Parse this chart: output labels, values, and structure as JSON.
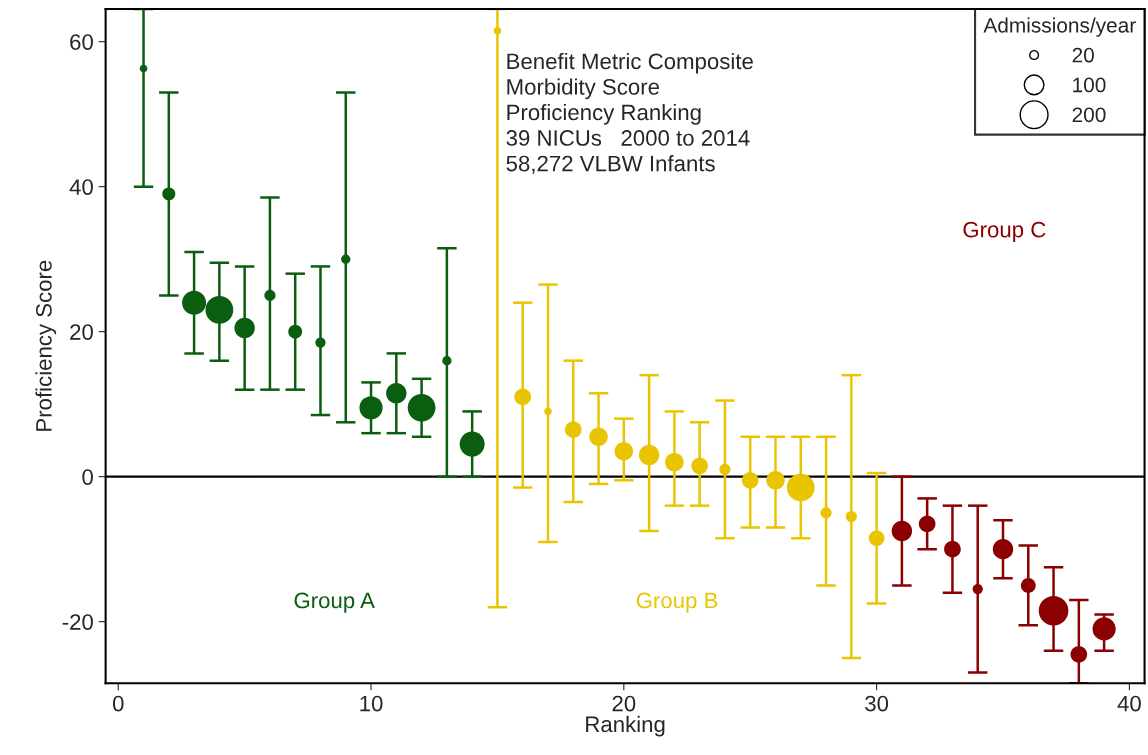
{
  "chart_data": {
    "type": "bubble",
    "xlabel": "Ranking",
    "ylabel": "Proficiency Score",
    "legend_title": "Admissions/year",
    "size_legend": [
      20,
      100,
      200
    ],
    "marker": "circle",
    "grid": false,
    "xlim": [
      -0.5,
      40.6
    ],
    "ylim": [
      -28.5,
      64.5
    ],
    "xticks": [
      0,
      10,
      20,
      30,
      40
    ],
    "yticks": [
      -20,
      0,
      20,
      40,
      60
    ],
    "ref_lines": [
      {
        "axis": "y",
        "value": 0,
        "color": "#000000"
      }
    ],
    "annotations": [
      "Benefit Metric Composite",
      "Morbidity Score",
      "Proficiency Ranking",
      "39 NICUs   2000 to 2014",
      "58,272 VLBW Infants",
      "Group A",
      "Group B",
      "Group C"
    ],
    "series": [
      {
        "color": "#0b5d0f",
        "x": [
          1,
          2,
          3,
          4,
          5,
          6,
          7,
          8,
          9,
          10,
          11,
          12,
          13,
          14
        ],
        "values": [
          56.3,
          39,
          24,
          23,
          20.5,
          25,
          20,
          18.5,
          30,
          9.5,
          11.5,
          9.5,
          16,
          4.5
        ],
        "errors": [
          [
            40,
            64.5
          ],
          [
            25,
            53
          ],
          [
            17,
            31
          ],
          [
            16,
            29.5
          ],
          [
            12,
            29
          ],
          [
            12,
            38.5
          ],
          [
            12,
            28
          ],
          [
            8.5,
            29
          ],
          [
            7.5,
            53
          ],
          [
            6,
            13
          ],
          [
            6,
            17
          ],
          [
            5.5,
            13.5
          ],
          [
            0,
            31.5
          ],
          [
            0,
            9
          ]
        ],
        "sizes": [
          15,
          44,
          150,
          200,
          108,
          32,
          50,
          27,
          22,
          139,
          108,
          200,
          22,
          162
        ]
      },
      {
        "color": "#e8c500",
        "x": [
          15,
          16,
          17,
          18,
          19,
          20,
          21,
          22,
          23,
          24,
          25,
          26,
          27,
          28,
          29,
          30
        ],
        "values": [
          61.5,
          11,
          9,
          6.5,
          5.5,
          3.5,
          3,
          2,
          1.5,
          1,
          -0.5,
          -0.5,
          -1.5,
          -5,
          -5.5,
          -8.5
        ],
        "errors": [
          [
            -18,
            64.5
          ],
          [
            -1.5,
            24
          ],
          [
            -9,
            26.5
          ],
          [
            -3.5,
            16
          ],
          [
            -1,
            11.5
          ],
          [
            -0.5,
            8
          ],
          [
            -7.5,
            14
          ],
          [
            -4,
            9
          ],
          [
            -4,
            7.5
          ],
          [
            -8.5,
            10.5
          ],
          [
            -7,
            5.5
          ],
          [
            -7,
            5.5
          ],
          [
            -8.5,
            5.5
          ],
          [
            -15,
            5.5
          ],
          [
            -25,
            14
          ],
          [
            -17.5,
            0.5
          ]
        ],
        "sizes": [
          15,
          72,
          15,
          72,
          89,
          89,
          108,
          89,
          72,
          32,
          72,
          89,
          200,
          32,
          32,
          64
        ]
      },
      {
        "color": "#8b0000",
        "x": [
          31,
          32,
          33,
          34,
          35,
          36,
          37,
          38,
          39
        ],
        "values": [
          -7.5,
          -6.5,
          -10,
          -15.5,
          -10,
          -15,
          -18.5,
          -24.5,
          -21
        ],
        "errors": [
          [
            -15,
            0
          ],
          [
            -10,
            -3
          ],
          [
            -16,
            -4
          ],
          [
            -27,
            -4
          ],
          [
            -14,
            -6
          ],
          [
            -20.5,
            -9.5
          ],
          [
            -24,
            -12.5
          ],
          [
            -28.5,
            -17
          ],
          [
            -24,
            -19
          ]
        ],
        "sizes": [
          108,
          72,
          72,
          27,
          108,
          57,
          228,
          72,
          139
        ]
      }
    ]
  }
}
